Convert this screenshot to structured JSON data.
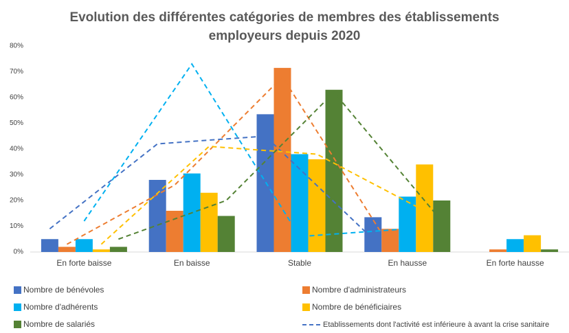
{
  "chart_data": {
    "type": "bar",
    "title": [
      "Evolution des différentes catégories de membres des établissements",
      "employeurs depuis 2020"
    ],
    "categories": [
      "En forte baisse",
      "En baisse",
      "Stable",
      "En hausse",
      "En forte hausse"
    ],
    "series": [
      {
        "name": "Nombre de bénévoles",
        "color": "#4472c4",
        "values": [
          5,
          28,
          53.5,
          13.5,
          0
        ]
      },
      {
        "name": "Nombre d'administrateurs",
        "color": "#ed7d31",
        "values": [
          2,
          16,
          71.5,
          9,
          1
        ]
      },
      {
        "name": "Nombre d'adhérents",
        "color": "#00b0f0",
        "values": [
          5,
          30.5,
          38,
          21.5,
          5
        ]
      },
      {
        "name": "Nombre de bénéficiaires",
        "color": "#ffc000",
        "values": [
          1,
          23,
          36,
          34,
          6.5
        ]
      },
      {
        "name": "Nombre de salariés",
        "color": "#548235",
        "values": [
          2,
          14,
          63,
          20,
          1
        ]
      }
    ],
    "line_legend": "Etablissements dont l'activité est inférieure à avant la crise sanitaire",
    "line_legend_color": "#4472c4",
    "line_series": [
      {
        "color": "#4472c4",
        "values": [
          9,
          42,
          45,
          5,
          null
        ]
      },
      {
        "color": "#ed7d31",
        "values": [
          3,
          26,
          68,
          2,
          null
        ]
      },
      {
        "color": "#00b0f0",
        "values": [
          12,
          73,
          6,
          9,
          null
        ]
      },
      {
        "color": "#ffc000",
        "values": [
          3,
          41,
          38,
          16,
          null
        ]
      },
      {
        "color": "#548235",
        "values": [
          5,
          20,
          62,
          12,
          null
        ]
      }
    ],
    "ylim": [
      0,
      80
    ],
    "yticks": [
      {
        "value": 0,
        "label": "0%"
      },
      {
        "value": 10,
        "label": "10%"
      },
      {
        "value": 20,
        "label": "20%"
      },
      {
        "value": 30,
        "label": "30%"
      },
      {
        "value": 40,
        "label": "40%"
      },
      {
        "value": 50,
        "label": "50%"
      },
      {
        "value": 60,
        "label": "60%"
      },
      {
        "value": 70,
        "label": "70%"
      },
      {
        "value": 80,
        "label": "80%"
      }
    ],
    "grid": false
  }
}
